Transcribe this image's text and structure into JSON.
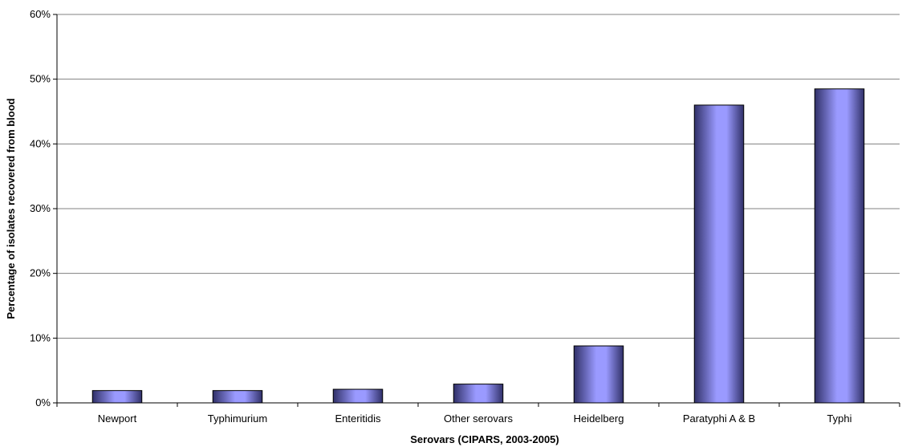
{
  "chart_data": {
    "type": "bar",
    "xlabel": "Serovars (CIPARS, 2003-2005)",
    "ylabel": "Percentage of isolates recovered from blood",
    "categories": [
      "Newport",
      "Typhimurium",
      "Enteritidis",
      "Other serovars",
      "Heidelberg",
      "Paratyphi A & B",
      "Typhi"
    ],
    "values": [
      1.9,
      1.9,
      2.1,
      2.9,
      8.8,
      46.0,
      48.5
    ],
    "ylim": [
      0,
      60
    ],
    "yticks": [
      "0%",
      "10%",
      "20%",
      "30%",
      "40%",
      "50%",
      "60%"
    ],
    "grid": true,
    "legend": "none",
    "colors": {
      "bar_light": "#9a9aff",
      "bar_dark": "#303068",
      "bar_outline": "#000000",
      "grid": "#808080"
    }
  }
}
